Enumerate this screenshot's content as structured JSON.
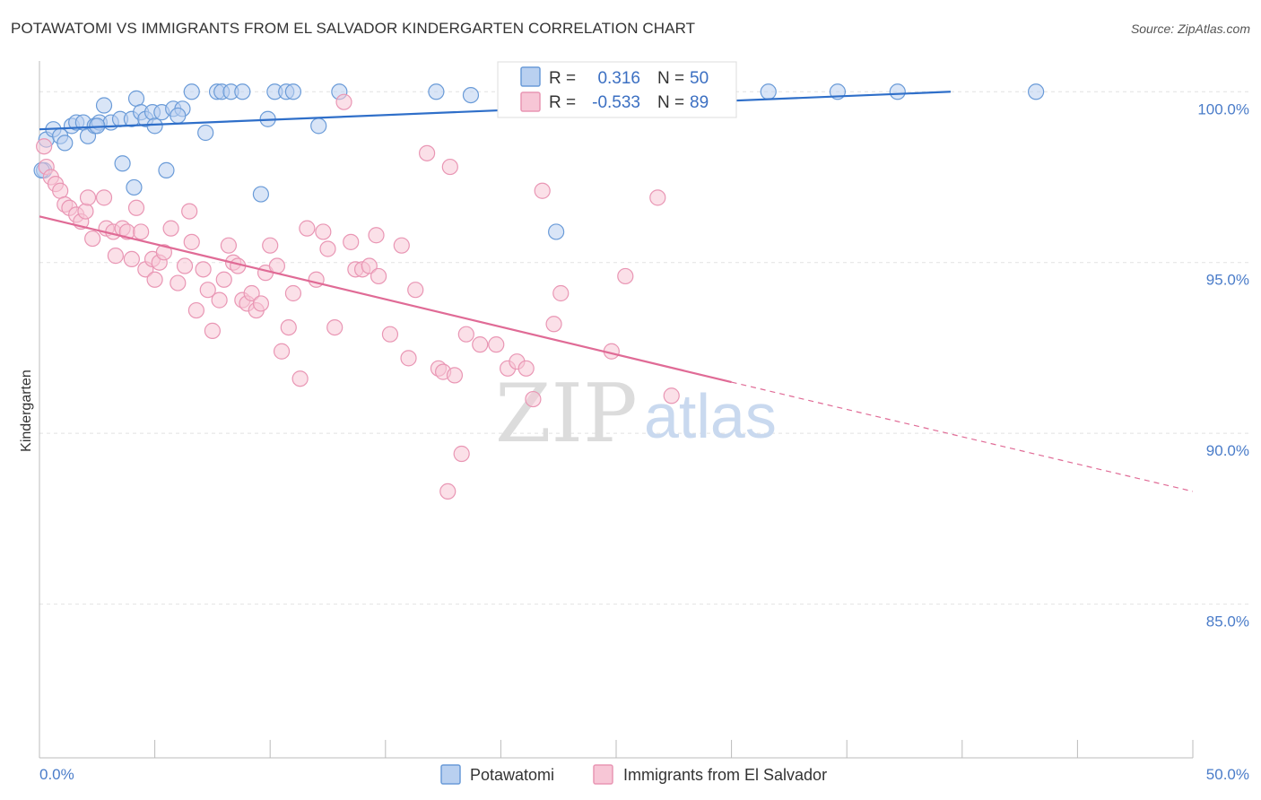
{
  "chart_data": {
    "type": "scatter",
    "title": "POTAWATOMI VS IMMIGRANTS FROM EL SALVADOR KINDERGARTEN CORRELATION CHART",
    "source": "Source: ZipAtlas.com",
    "xlabel": "",
    "ylabel": "Kindergarten",
    "xlim": [
      0,
      50
    ],
    "ylim": [
      80.5,
      100.9
    ],
    "x_tick_labels": {
      "left": "0.0%",
      "right": "50.0%"
    },
    "y_ticks": [
      {
        "value": 100,
        "label": "100.0%"
      },
      {
        "value": 95,
        "label": "95.0%"
      },
      {
        "value": 90,
        "label": "90.0%"
      },
      {
        "value": 85,
        "label": "85.0%"
      }
    ],
    "series": [
      {
        "name": "Potawatomi",
        "color": "#6a9bd8",
        "fill": "#b9d0f0",
        "line_color": "#2f6fc9",
        "R": "0.316",
        "N": "50",
        "trend": {
          "x0": 0,
          "y0": 98.9,
          "x1": 39.5,
          "y1": 100.0
        },
        "points": [
          [
            0.2,
            97.7
          ],
          [
            0.3,
            98.6
          ],
          [
            0.6,
            98.9
          ],
          [
            0.9,
            98.7
          ],
          [
            1.1,
            98.5
          ],
          [
            1.4,
            99.0
          ],
          [
            1.6,
            99.1
          ],
          [
            1.9,
            99.1
          ],
          [
            2.1,
            98.7
          ],
          [
            2.4,
            99.0
          ],
          [
            2.6,
            99.1
          ],
          [
            2.8,
            99.6
          ],
          [
            3.1,
            99.1
          ],
          [
            3.5,
            99.2
          ],
          [
            3.6,
            97.9
          ],
          [
            4.0,
            99.2
          ],
          [
            4.1,
            97.2
          ],
          [
            4.2,
            99.8
          ],
          [
            4.4,
            99.4
          ],
          [
            4.6,
            99.2
          ],
          [
            4.9,
            99.4
          ],
          [
            5.0,
            99.0
          ],
          [
            5.3,
            99.4
          ],
          [
            5.5,
            97.7
          ],
          [
            5.8,
            99.5
          ],
          [
            6.2,
            99.5
          ],
          [
            6.6,
            100.0
          ],
          [
            7.2,
            98.8
          ],
          [
            7.7,
            100.0
          ],
          [
            7.9,
            100.0
          ],
          [
            8.3,
            100.0
          ],
          [
            8.8,
            100.0
          ],
          [
            9.6,
            97.0
          ],
          [
            9.9,
            99.2
          ],
          [
            10.2,
            100.0
          ],
          [
            10.7,
            100.0
          ],
          [
            11.0,
            100.0
          ],
          [
            12.1,
            99.0
          ],
          [
            13.0,
            100.0
          ],
          [
            17.2,
            100.0
          ],
          [
            18.7,
            99.9
          ],
          [
            21.3,
            100.0
          ],
          [
            22.4,
            95.9
          ],
          [
            31.6,
            100.0
          ],
          [
            34.6,
            100.0
          ],
          [
            37.2,
            100.0
          ],
          [
            43.2,
            100.0
          ],
          [
            0.1,
            97.7
          ],
          [
            6.0,
            99.3
          ],
          [
            2.5,
            99.0
          ]
        ]
      },
      {
        "name": "Immigrants from El Salvador",
        "color": "#e996b4",
        "fill": "#f7c6d6",
        "line_color": "#e06b96",
        "R": "-0.533",
        "N": "89",
        "trend": {
          "x0": 0,
          "y0": 96.35,
          "x1": 30.0,
          "y1": 91.5
        },
        "trend_dashed": {
          "x0": 30.0,
          "y0": 91.5,
          "x1": 50.0,
          "y1": 88.3
        },
        "points": [
          [
            0.2,
            98.4
          ],
          [
            0.3,
            97.8
          ],
          [
            0.5,
            97.5
          ],
          [
            0.7,
            97.3
          ],
          [
            0.9,
            97.1
          ],
          [
            1.1,
            96.7
          ],
          [
            1.3,
            96.6
          ],
          [
            1.6,
            96.4
          ],
          [
            1.8,
            96.2
          ],
          [
            2.0,
            96.5
          ],
          [
            2.1,
            96.9
          ],
          [
            2.3,
            95.7
          ],
          [
            2.8,
            96.9
          ],
          [
            2.9,
            96.0
          ],
          [
            3.2,
            95.9
          ],
          [
            3.3,
            95.2
          ],
          [
            3.6,
            96.0
          ],
          [
            3.8,
            95.9
          ],
          [
            4.0,
            95.1
          ],
          [
            4.2,
            96.6
          ],
          [
            4.4,
            95.9
          ],
          [
            4.6,
            94.8
          ],
          [
            4.9,
            95.1
          ],
          [
            5.0,
            94.5
          ],
          [
            5.2,
            95.0
          ],
          [
            5.4,
            95.3
          ],
          [
            5.7,
            96.0
          ],
          [
            6.0,
            94.4
          ],
          [
            6.3,
            94.9
          ],
          [
            6.5,
            96.5
          ],
          [
            6.6,
            95.6
          ],
          [
            6.8,
            93.6
          ],
          [
            7.1,
            94.8
          ],
          [
            7.3,
            94.2
          ],
          [
            7.5,
            93.0
          ],
          [
            7.8,
            93.9
          ],
          [
            8.0,
            94.5
          ],
          [
            8.2,
            95.5
          ],
          [
            8.4,
            95.0
          ],
          [
            8.6,
            94.9
          ],
          [
            8.8,
            93.9
          ],
          [
            9.0,
            93.8
          ],
          [
            9.2,
            94.1
          ],
          [
            9.4,
            93.6
          ],
          [
            9.6,
            93.8
          ],
          [
            9.8,
            94.7
          ],
          [
            10.0,
            95.5
          ],
          [
            10.3,
            94.9
          ],
          [
            10.5,
            92.4
          ],
          [
            10.8,
            93.1
          ],
          [
            11.0,
            94.1
          ],
          [
            11.3,
            91.6
          ],
          [
            11.6,
            96.0
          ],
          [
            12.0,
            94.5
          ],
          [
            12.3,
            95.9
          ],
          [
            12.5,
            95.4
          ],
          [
            12.8,
            93.1
          ],
          [
            13.2,
            99.7
          ],
          [
            13.5,
            95.6
          ],
          [
            13.7,
            94.8
          ],
          [
            14.0,
            94.8
          ],
          [
            14.3,
            94.9
          ],
          [
            14.6,
            95.8
          ],
          [
            14.7,
            94.6
          ],
          [
            15.2,
            92.9
          ],
          [
            15.7,
            95.5
          ],
          [
            16.0,
            92.2
          ],
          [
            16.3,
            94.2
          ],
          [
            16.8,
            98.2
          ],
          [
            17.3,
            91.9
          ],
          [
            17.5,
            91.8
          ],
          [
            17.8,
            97.8
          ],
          [
            18.0,
            91.7
          ],
          [
            18.5,
            92.9
          ],
          [
            19.1,
            92.6
          ],
          [
            19.8,
            92.6
          ],
          [
            20.3,
            91.9
          ],
          [
            20.7,
            92.1
          ],
          [
            21.1,
            91.9
          ],
          [
            21.4,
            91.0
          ],
          [
            21.8,
            97.1
          ],
          [
            22.3,
            93.2
          ],
          [
            22.6,
            94.1
          ],
          [
            24.8,
            92.4
          ],
          [
            25.4,
            94.6
          ],
          [
            26.8,
            96.9
          ],
          [
            27.4,
            91.1
          ],
          [
            17.7,
            88.3
          ],
          [
            18.3,
            89.4
          ]
        ]
      }
    ]
  },
  "legend": {
    "items": [
      {
        "label": "Potawatomi"
      },
      {
        "label": "Immigrants from El Salvador"
      }
    ]
  },
  "stats": {
    "r_label": "R =",
    "n_label": "N =",
    "row1": {
      "r": "0.316",
      "n": "50"
    },
    "row2": {
      "r": "-0.533",
      "n": "89"
    }
  },
  "watermark": {
    "zip": "ZIP",
    "atlas": "atlas"
  }
}
